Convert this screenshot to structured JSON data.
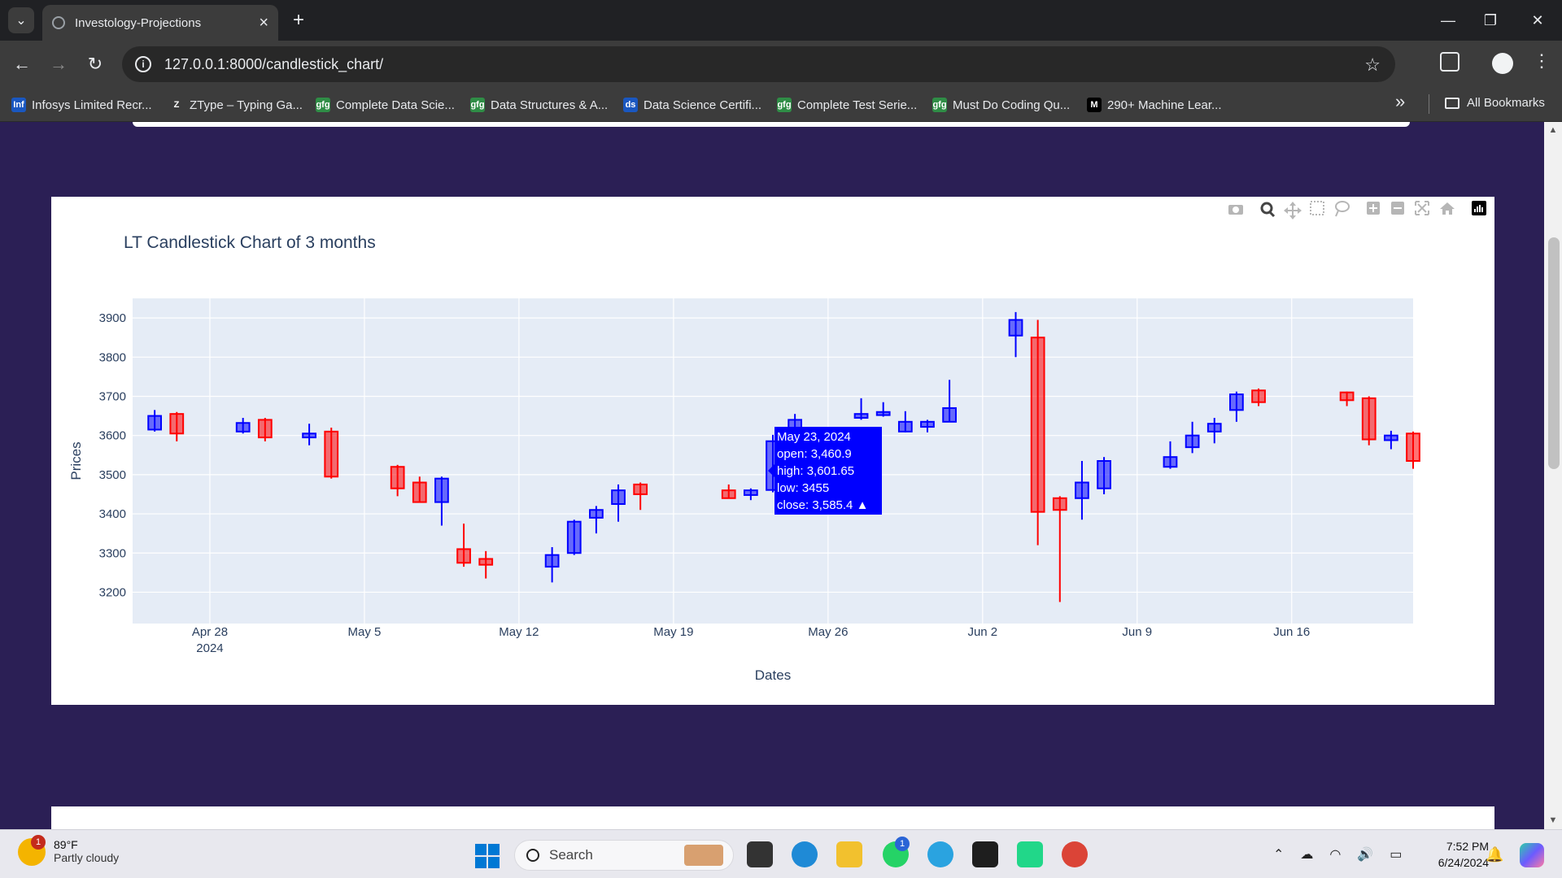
{
  "browser": {
    "tab_title": "Investology-Projections",
    "url": "127.0.0.1:8000/candlestick_chart/",
    "bookmarks": [
      {
        "label": "Infosys Limited Recr...",
        "icon": "Infc",
        "color": "#1a57c0"
      },
      {
        "label": "ZType – Typing Ga...",
        "icon": "Z",
        "color": "#3c3c3c"
      },
      {
        "label": "Complete Data Scie...",
        "icon": "gfg",
        "color": "#2f8d46"
      },
      {
        "label": "Data Structures & A...",
        "icon": "gfg",
        "color": "#2f8d46"
      },
      {
        "label": "Data Science Certifi...",
        "icon": "ds",
        "color": "#1a57c0"
      },
      {
        "label": "Complete Test Serie...",
        "icon": "gfg",
        "color": "#2f8d46"
      },
      {
        "label": "Must Do Coding Qu...",
        "icon": "gfg",
        "color": "#2f8d46"
      },
      {
        "label": "290+ Machine Lear...",
        "icon": "M",
        "color": "#000000"
      }
    ],
    "all_bookmarks": "All Bookmarks"
  },
  "chart_data": {
    "type": "candlestick",
    "title": "LT Candlestick Chart of 3 months",
    "xlabel": "Dates",
    "ylabel": "Prices",
    "ylim": [
      3120,
      3950
    ],
    "yticks": [
      3200,
      3300,
      3400,
      3500,
      3600,
      3700,
      3800,
      3900
    ],
    "xticks": [
      {
        "date": "2024-04-28",
        "label": "Apr 28",
        "sublabel": "2024"
      },
      {
        "date": "2024-05-05",
        "label": "May 5",
        "sublabel": ""
      },
      {
        "date": "2024-05-12",
        "label": "May 12",
        "sublabel": ""
      },
      {
        "date": "2024-05-19",
        "label": "May 19",
        "sublabel": ""
      },
      {
        "date": "2024-05-26",
        "label": "May 26",
        "sublabel": ""
      },
      {
        "date": "2024-06-02",
        "label": "Jun 2",
        "sublabel": ""
      },
      {
        "date": "2024-06-09",
        "label": "Jun 9",
        "sublabel": ""
      },
      {
        "date": "2024-06-16",
        "label": "Jun 16",
        "sublabel": ""
      }
    ],
    "xrange": [
      "2024-04-24T12:00",
      "2024-06-21T12:00"
    ],
    "increasing_color": "#0000ff",
    "decreasing_color": "#ff0000",
    "candles": [
      {
        "date": "2024-04-25",
        "open": 3615,
        "high": 3665,
        "low": 3610,
        "close": 3650
      },
      {
        "date": "2024-04-26",
        "open": 3655,
        "high": 3660,
        "low": 3585,
        "close": 3605
      },
      {
        "date": "2024-04-29",
        "open": 3610,
        "high": 3645,
        "low": 3605,
        "close": 3632
      },
      {
        "date": "2024-04-30",
        "open": 3640,
        "high": 3645,
        "low": 3585,
        "close": 3595
      },
      {
        "date": "2024-05-02",
        "open": 3595,
        "high": 3630,
        "low": 3575,
        "close": 3605
      },
      {
        "date": "2024-05-03",
        "open": 3610,
        "high": 3620,
        "low": 3490,
        "close": 3495
      },
      {
        "date": "2024-05-06",
        "open": 3520,
        "high": 3525,
        "low": 3445,
        "close": 3465
      },
      {
        "date": "2024-05-07",
        "open": 3480,
        "high": 3495,
        "low": 3430,
        "close": 3430
      },
      {
        "date": "2024-05-08",
        "open": 3430,
        "high": 3495,
        "low": 3370,
        "close": 3490
      },
      {
        "date": "2024-05-09",
        "open": 3310,
        "high": 3375,
        "low": 3265,
        "close": 3275
      },
      {
        "date": "2024-05-10",
        "open": 3285,
        "high": 3305,
        "low": 3235,
        "close": 3270
      },
      {
        "date": "2024-05-13",
        "open": 3265,
        "high": 3315,
        "low": 3225,
        "close": 3295
      },
      {
        "date": "2024-05-14",
        "open": 3300,
        "high": 3385,
        "low": 3295,
        "close": 3380
      },
      {
        "date": "2024-05-15",
        "open": 3390,
        "high": 3420,
        "low": 3350,
        "close": 3410
      },
      {
        "date": "2024-05-16",
        "open": 3425,
        "high": 3475,
        "low": 3380,
        "close": 3460
      },
      {
        "date": "2024-05-17",
        "open": 3475,
        "high": 3480,
        "low": 3410,
        "close": 3450
      },
      {
        "date": "2024-05-21",
        "open": 3460,
        "high": 3475,
        "low": 3440,
        "close": 3440
      },
      {
        "date": "2024-05-22",
        "open": 3448,
        "high": 3465,
        "low": 3435,
        "close": 3460
      },
      {
        "date": "2024-05-23",
        "open": 3460.9,
        "high": 3601.65,
        "low": 3455,
        "close": 3585.4
      },
      {
        "date": "2024-05-24",
        "open": 3595,
        "high": 3655,
        "low": 3590,
        "close": 3640
      },
      {
        "date": "2024-05-27",
        "open": 3645,
        "high": 3695,
        "low": 3640,
        "close": 3655
      },
      {
        "date": "2024-05-28",
        "open": 3652,
        "high": 3685,
        "low": 3648,
        "close": 3660
      },
      {
        "date": "2024-05-29",
        "open": 3610,
        "high": 3662,
        "low": 3608,
        "close": 3635
      },
      {
        "date": "2024-05-30",
        "open": 3622,
        "high": 3640,
        "low": 3608,
        "close": 3635
      },
      {
        "date": "2024-05-31",
        "open": 3635,
        "high": 3742,
        "low": 3635,
        "close": 3670
      },
      {
        "date": "2024-06-03",
        "open": 3855,
        "high": 3915,
        "low": 3800,
        "close": 3895
      },
      {
        "date": "2024-06-04",
        "open": 3850,
        "high": 3895,
        "low": 3320,
        "close": 3405
      },
      {
        "date": "2024-06-05",
        "open": 3440,
        "high": 3445,
        "low": 3175,
        "close": 3410
      },
      {
        "date": "2024-06-06",
        "open": 3440,
        "high": 3535,
        "low": 3385,
        "close": 3480
      },
      {
        "date": "2024-06-07",
        "open": 3465,
        "high": 3545,
        "low": 3450,
        "close": 3535
      },
      {
        "date": "2024-06-10",
        "open": 3520,
        "high": 3585,
        "low": 3515,
        "close": 3545
      },
      {
        "date": "2024-06-11",
        "open": 3570,
        "high": 3635,
        "low": 3555,
        "close": 3600
      },
      {
        "date": "2024-06-12",
        "open": 3610,
        "high": 3645,
        "low": 3580,
        "close": 3630
      },
      {
        "date": "2024-06-13",
        "open": 3665,
        "high": 3712,
        "low": 3635,
        "close": 3705
      },
      {
        "date": "2024-06-14",
        "open": 3715,
        "high": 3720,
        "low": 3675,
        "close": 3685
      },
      {
        "date": "2024-06-18",
        "open": 3710,
        "high": 3712,
        "low": 3675,
        "close": 3690
      },
      {
        "date": "2024-06-19",
        "open": 3695,
        "high": 3700,
        "low": 3575,
        "close": 3590
      },
      {
        "date": "2024-06-20",
        "open": 3588,
        "high": 3612,
        "low": 3565,
        "close": 3600
      },
      {
        "date": "2024-06-21",
        "open": 3605,
        "high": 3610,
        "low": 3515,
        "close": 3535
      }
    ],
    "hover": {
      "date": "May 23, 2024",
      "open": "open: 3,460.9",
      "high": "high: 3,601.65",
      "low": "low: 3455",
      "close": "close: 3,585.4 ▲"
    }
  },
  "taskbar": {
    "weather_temp": "89°F",
    "weather_cond": "Partly cloudy",
    "weather_badge": "1",
    "search_label": "Search",
    "whatsapp_badge": "1",
    "time": "7:52 PM",
    "date": "6/24/2024"
  }
}
